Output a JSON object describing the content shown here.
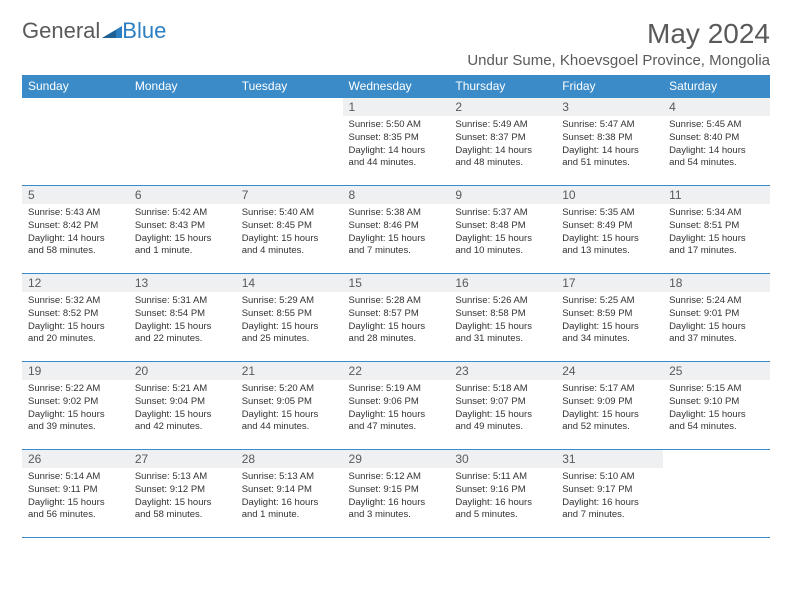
{
  "brand": {
    "part1": "General",
    "part2": "Blue"
  },
  "title": "May 2024",
  "location": "Undur Sume, Khoevsgoel Province, Mongolia",
  "colors": {
    "header_bg": "#3b8bc9",
    "header_text": "#ffffff",
    "daynum_bg": "#eef0f2",
    "border": "#3b8bc9",
    "title_color": "#5a5a5a",
    "brand_blue": "#2d7fc1"
  },
  "weekdays": [
    "Sunday",
    "Monday",
    "Tuesday",
    "Wednesday",
    "Thursday",
    "Friday",
    "Saturday"
  ],
  "weeks": [
    [
      null,
      null,
      null,
      {
        "n": "1",
        "sr": "5:50 AM",
        "ss": "8:35 PM",
        "dl": "14 hours and 44 minutes."
      },
      {
        "n": "2",
        "sr": "5:49 AM",
        "ss": "8:37 PM",
        "dl": "14 hours and 48 minutes."
      },
      {
        "n": "3",
        "sr": "5:47 AM",
        "ss": "8:38 PM",
        "dl": "14 hours and 51 minutes."
      },
      {
        "n": "4",
        "sr": "5:45 AM",
        "ss": "8:40 PM",
        "dl": "14 hours and 54 minutes."
      }
    ],
    [
      {
        "n": "5",
        "sr": "5:43 AM",
        "ss": "8:42 PM",
        "dl": "14 hours and 58 minutes."
      },
      {
        "n": "6",
        "sr": "5:42 AM",
        "ss": "8:43 PM",
        "dl": "15 hours and 1 minute."
      },
      {
        "n": "7",
        "sr": "5:40 AM",
        "ss": "8:45 PM",
        "dl": "15 hours and 4 minutes."
      },
      {
        "n": "8",
        "sr": "5:38 AM",
        "ss": "8:46 PM",
        "dl": "15 hours and 7 minutes."
      },
      {
        "n": "9",
        "sr": "5:37 AM",
        "ss": "8:48 PM",
        "dl": "15 hours and 10 minutes."
      },
      {
        "n": "10",
        "sr": "5:35 AM",
        "ss": "8:49 PM",
        "dl": "15 hours and 13 minutes."
      },
      {
        "n": "11",
        "sr": "5:34 AM",
        "ss": "8:51 PM",
        "dl": "15 hours and 17 minutes."
      }
    ],
    [
      {
        "n": "12",
        "sr": "5:32 AM",
        "ss": "8:52 PM",
        "dl": "15 hours and 20 minutes."
      },
      {
        "n": "13",
        "sr": "5:31 AM",
        "ss": "8:54 PM",
        "dl": "15 hours and 22 minutes."
      },
      {
        "n": "14",
        "sr": "5:29 AM",
        "ss": "8:55 PM",
        "dl": "15 hours and 25 minutes."
      },
      {
        "n": "15",
        "sr": "5:28 AM",
        "ss": "8:57 PM",
        "dl": "15 hours and 28 minutes."
      },
      {
        "n": "16",
        "sr": "5:26 AM",
        "ss": "8:58 PM",
        "dl": "15 hours and 31 minutes."
      },
      {
        "n": "17",
        "sr": "5:25 AM",
        "ss": "8:59 PM",
        "dl": "15 hours and 34 minutes."
      },
      {
        "n": "18",
        "sr": "5:24 AM",
        "ss": "9:01 PM",
        "dl": "15 hours and 37 minutes."
      }
    ],
    [
      {
        "n": "19",
        "sr": "5:22 AM",
        "ss": "9:02 PM",
        "dl": "15 hours and 39 minutes."
      },
      {
        "n": "20",
        "sr": "5:21 AM",
        "ss": "9:04 PM",
        "dl": "15 hours and 42 minutes."
      },
      {
        "n": "21",
        "sr": "5:20 AM",
        "ss": "9:05 PM",
        "dl": "15 hours and 44 minutes."
      },
      {
        "n": "22",
        "sr": "5:19 AM",
        "ss": "9:06 PM",
        "dl": "15 hours and 47 minutes."
      },
      {
        "n": "23",
        "sr": "5:18 AM",
        "ss": "9:07 PM",
        "dl": "15 hours and 49 minutes."
      },
      {
        "n": "24",
        "sr": "5:17 AM",
        "ss": "9:09 PM",
        "dl": "15 hours and 52 minutes."
      },
      {
        "n": "25",
        "sr": "5:15 AM",
        "ss": "9:10 PM",
        "dl": "15 hours and 54 minutes."
      }
    ],
    [
      {
        "n": "26",
        "sr": "5:14 AM",
        "ss": "9:11 PM",
        "dl": "15 hours and 56 minutes."
      },
      {
        "n": "27",
        "sr": "5:13 AM",
        "ss": "9:12 PM",
        "dl": "15 hours and 58 minutes."
      },
      {
        "n": "28",
        "sr": "5:13 AM",
        "ss": "9:14 PM",
        "dl": "16 hours and 1 minute."
      },
      {
        "n": "29",
        "sr": "5:12 AM",
        "ss": "9:15 PM",
        "dl": "16 hours and 3 minutes."
      },
      {
        "n": "30",
        "sr": "5:11 AM",
        "ss": "9:16 PM",
        "dl": "16 hours and 5 minutes."
      },
      {
        "n": "31",
        "sr": "5:10 AM",
        "ss": "9:17 PM",
        "dl": "16 hours and 7 minutes."
      },
      null
    ]
  ],
  "labels": {
    "sunrise": "Sunrise:",
    "sunset": "Sunset:",
    "daylight": "Daylight:"
  }
}
